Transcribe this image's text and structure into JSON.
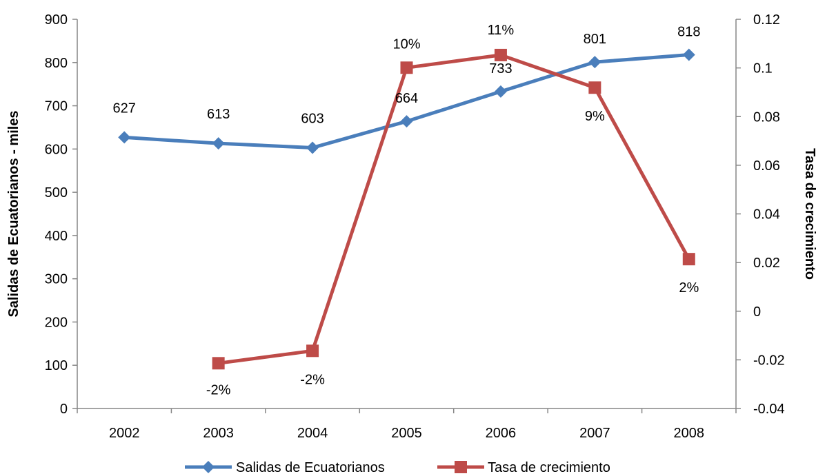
{
  "chart_data": {
    "type": "line",
    "categories": [
      "2002",
      "2003",
      "2004",
      "2005",
      "2006",
      "2007",
      "2008"
    ],
    "series": [
      {
        "name": "Salidas de Ecuatorianos",
        "axis": "left",
        "color": "#4A7EBB",
        "marker": "diamond",
        "values": [
          627,
          613,
          603,
          664,
          733,
          801,
          818
        ],
        "labels": [
          "627",
          "613",
          "603",
          "664",
          "733",
          "801",
          "818"
        ]
      },
      {
        "name": "Tasa de crecimiento",
        "axis": "right",
        "color": "#BE4B48",
        "marker": "square",
        "values": [
          null,
          -0.0214,
          -0.0163,
          0.1001,
          0.1053,
          0.0919,
          0.0214
        ],
        "labels": [
          "",
          "-2%",
          "-2%",
          "10%",
          "11%",
          "9%",
          "2%"
        ]
      }
    ],
    "y_left": {
      "label": "Salidas de Ecuatorianos - miles",
      "range": [
        0,
        900
      ],
      "ticks": [
        "0",
        "100",
        "200",
        "300",
        "400",
        "500",
        "600",
        "700",
        "800",
        "900"
      ]
    },
    "y_right": {
      "label": "Tasa de crecimiento",
      "range": [
        -0.04,
        0.12
      ],
      "ticks": [
        "-0.04",
        "-0.02",
        "0",
        "0.02",
        "0.04",
        "0.06",
        "0.08",
        "0.1",
        "0.12"
      ]
    },
    "grid": false,
    "legend": "bottom"
  }
}
